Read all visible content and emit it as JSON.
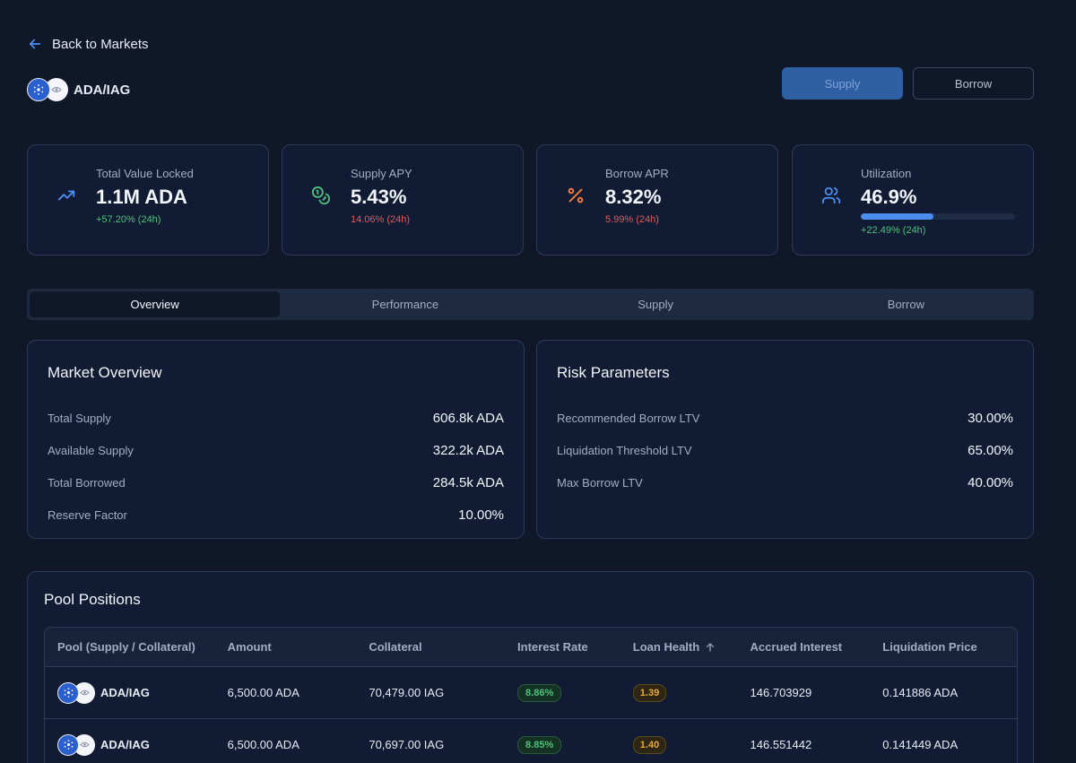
{
  "nav": {
    "back_label": "Back to Markets"
  },
  "market": {
    "pair": "ADA/IAG"
  },
  "actions": {
    "supply_label": "Supply",
    "borrow_label": "Borrow"
  },
  "stats": {
    "tvl": {
      "title": "Total Value Locked",
      "value": "1.1M ADA",
      "delta": "+57.20% (24h)"
    },
    "supply_apy": {
      "title": "Supply APY",
      "value": "5.43%",
      "delta": "14.06% (24h)"
    },
    "borrow_apr": {
      "title": "Borrow APR",
      "value": "8.32%",
      "delta": "5.99% (24h)"
    },
    "utilization": {
      "title": "Utilization",
      "value": "46.9%",
      "progress_percent": 46.9,
      "delta": "+22.49% (24h)"
    }
  },
  "tabs": [
    "Overview",
    "Performance",
    "Supply",
    "Borrow"
  ],
  "market_overview": {
    "title": "Market Overview",
    "rows": [
      {
        "label": "Total Supply",
        "value": "606.8k ADA"
      },
      {
        "label": "Available Supply",
        "value": "322.2k ADA"
      },
      {
        "label": "Total Borrowed",
        "value": "284.5k ADA"
      },
      {
        "label": "Reserve Factor",
        "value": "10.00%"
      }
    ]
  },
  "risk_parameters": {
    "title": "Risk Parameters",
    "rows": [
      {
        "label": "Recommended Borrow LTV",
        "value": "30.00%"
      },
      {
        "label": "Liquidation Threshold LTV",
        "value": "65.00%"
      },
      {
        "label": "Max Borrow LTV",
        "value": "40.00%"
      }
    ]
  },
  "pool_positions": {
    "title": "Pool Positions",
    "columns": [
      "Pool (Supply / Collateral)",
      "Amount",
      "Collateral",
      "Interest Rate",
      "Loan Health",
      "Accrued Interest",
      "Liquidation Price"
    ],
    "rows": [
      {
        "pool": "ADA/IAG",
        "amount": "6,500.00 ADA",
        "collateral": "70,479.00 IAG",
        "interest_rate": "8.86%",
        "loan_health": "1.39",
        "accrued_interest": "146.703929",
        "liquidation_price": "0.141886 ADA"
      },
      {
        "pool": "ADA/IAG",
        "amount": "6,500.00 ADA",
        "collateral": "70,697.00 IAG",
        "interest_rate": "8.85%",
        "loan_health": "1.40",
        "accrued_interest": "146.551442",
        "liquidation_price": "0.141449 ADA"
      }
    ]
  },
  "colors": {
    "background": "#0f1729",
    "accent": "#4a8ef0",
    "positive": "#4ec07c",
    "negative": "#e25b5b",
    "warning": "#e9a834"
  }
}
